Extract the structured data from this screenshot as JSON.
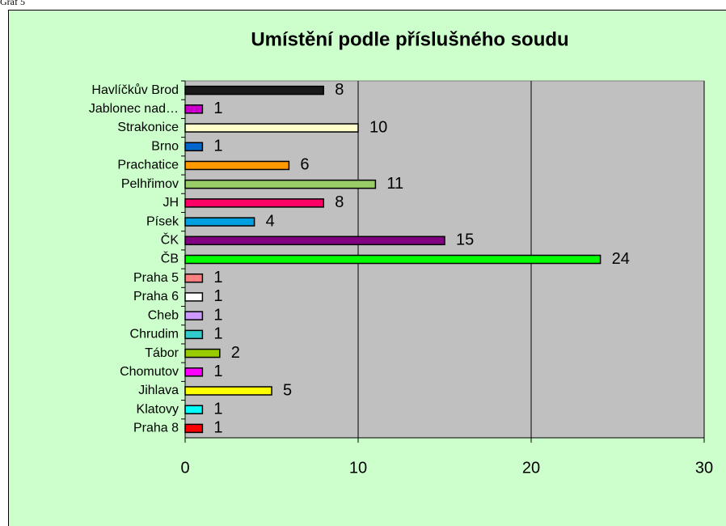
{
  "caption": "Graf 5",
  "chart_data": {
    "type": "bar",
    "orientation": "horizontal",
    "title": "Umístění podle příslušného soudu",
    "categories": [
      "Havlíčkův Brod",
      "Jablonec nad…",
      "Strakonice",
      "Brno",
      "Prachatice",
      "Pelhřimov",
      "JH",
      "Písek",
      "ČK",
      "ČB",
      "Praha 5",
      "Praha 6",
      "Cheb",
      "Chrudim",
      "Tábor",
      "Chomutov",
      "Jihlava",
      "Klatovy",
      "Praha 8"
    ],
    "values": [
      8,
      1,
      10,
      1,
      6,
      11,
      8,
      4,
      15,
      24,
      1,
      1,
      1,
      1,
      2,
      1,
      5,
      1,
      1
    ],
    "colors": [
      "#1a1a1a",
      "#cc00cc",
      "#ffffcc",
      "#0066cc",
      "#ff9900",
      "#99cc66",
      "#ff0066",
      "#00a0e0",
      "#800080",
      "#00ff00",
      "#ff8080",
      "#ffffff",
      "#cc99ff",
      "#33cccc",
      "#99cc00",
      "#ff00ff",
      "#ffff00",
      "#00ffff",
      "#ff0000"
    ],
    "xlim": [
      0,
      30
    ],
    "xticks": [
      0,
      10,
      20,
      30
    ],
    "grid": true
  }
}
